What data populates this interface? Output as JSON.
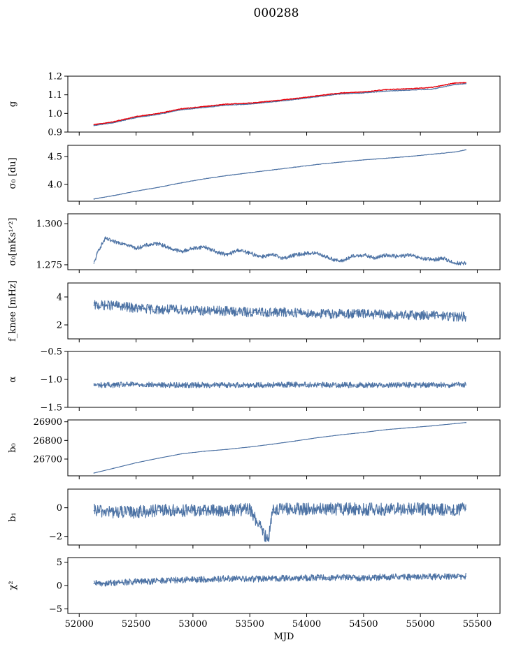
{
  "figure": {
    "title": "000288"
  },
  "colors": {
    "series": "#4c72a4",
    "highlight": "#e8000b",
    "axis": "#000000"
  },
  "chart_data": [
    {
      "id": "g",
      "type": "line",
      "ylabel": "g",
      "xlim": [
        51900,
        55700
      ],
      "ylim": [
        0.9,
        1.2
      ],
      "yticks": [
        0.9,
        1.0,
        1.1,
        1.2
      ],
      "ytick_labels": [
        "0.9",
        "1.0",
        "1.1",
        "1.2"
      ],
      "series": [
        {
          "color": "#4c72a4",
          "x": [
            52130,
            52300,
            52500,
            52700,
            52900,
            53100,
            53300,
            53500,
            53700,
            53900,
            54100,
            54300,
            54500,
            54700,
            54900,
            55100,
            55300,
            55400
          ],
          "y": [
            0.935,
            0.95,
            0.978,
            0.995,
            1.02,
            1.032,
            1.045,
            1.05,
            1.062,
            1.075,
            1.09,
            1.105,
            1.11,
            1.12,
            1.125,
            1.13,
            1.155,
            1.16
          ]
        },
        {
          "color": "#e8000b",
          "x": [
            52130,
            52300,
            52500,
            52700,
            52900,
            53100,
            53300,
            53500,
            53700,
            53900,
            54100,
            54300,
            54500,
            54700,
            54900,
            55100,
            55300,
            55400
          ],
          "y": [
            0.94,
            0.955,
            0.983,
            1.0,
            1.025,
            1.037,
            1.05,
            1.055,
            1.067,
            1.08,
            1.095,
            1.11,
            1.115,
            1.128,
            1.132,
            1.14,
            1.163,
            1.165
          ]
        }
      ]
    },
    {
      "id": "sigma0",
      "type": "line",
      "ylabel": "σ₀ [du]",
      "xlim": [
        51900,
        55700
      ],
      "ylim": [
        3.7,
        4.7
      ],
      "yticks": [
        4.0,
        4.5
      ],
      "ytick_labels": [
        "4.0",
        "4.5"
      ],
      "series": [
        {
          "color": "#4c72a4",
          "x": [
            52130,
            52300,
            52500,
            52700,
            52900,
            53100,
            53300,
            53500,
            53700,
            53900,
            54100,
            54300,
            54500,
            54700,
            54900,
            55100,
            55300,
            55400
          ],
          "y": [
            3.74,
            3.8,
            3.88,
            3.95,
            4.03,
            4.1,
            4.16,
            4.21,
            4.26,
            4.31,
            4.36,
            4.4,
            4.44,
            4.47,
            4.5,
            4.54,
            4.58,
            4.62
          ]
        }
      ]
    },
    {
      "id": "sigma0-mks",
      "type": "line",
      "ylabel": "σ₀[mKs¹ᐟ²]",
      "xlim": [
        51900,
        55700
      ],
      "ylim": [
        1.272,
        1.306
      ],
      "yticks": [
        1.275,
        1.3
      ],
      "ytick_labels": [
        "1.275",
        "1.300"
      ],
      "series": [
        {
          "color": "#4c72a4",
          "x": [
            52130,
            52170,
            52230,
            52300,
            52400,
            52500,
            52600,
            52700,
            52800,
            52900,
            53000,
            53100,
            53200,
            53300,
            53400,
            53500,
            53600,
            53700,
            53800,
            53900,
            54000,
            54100,
            54200,
            54300,
            54400,
            54500,
            54600,
            54700,
            54800,
            54900,
            55000,
            55100,
            55200,
            55300,
            55400
          ],
          "y": [
            1.276,
            1.284,
            1.291,
            1.289,
            1.288,
            1.285,
            1.287,
            1.288,
            1.285,
            1.283,
            1.285,
            1.286,
            1.283,
            1.281,
            1.284,
            1.282,
            1.28,
            1.281,
            1.279,
            1.281,
            1.282,
            1.282,
            1.279,
            1.277,
            1.28,
            1.281,
            1.279,
            1.281,
            1.28,
            1.281,
            1.279,
            1.278,
            1.279,
            1.276,
            1.276
          ]
        }
      ]
    },
    {
      "id": "fknee",
      "type": "line",
      "ylabel": "f_knee [mHz]",
      "xlim": [
        51900,
        55700
      ],
      "ylim": [
        1.0,
        5.0
      ],
      "yticks": [
        2,
        4
      ],
      "ytick_labels": [
        "2",
        "4"
      ],
      "series": [
        {
          "color": "#4c72a4",
          "x": [
            52130,
            52300,
            52500,
            52700,
            52900,
            53100,
            53300,
            53500,
            53700,
            53900,
            54100,
            54300,
            54500,
            54700,
            54900,
            55100,
            55300,
            55400
          ],
          "y": [
            3.4,
            3.4,
            3.2,
            3.1,
            3.1,
            3.0,
            3.0,
            2.9,
            2.9,
            2.9,
            2.8,
            2.8,
            2.8,
            2.7,
            2.7,
            2.7,
            2.6,
            2.6
          ]
        }
      ]
    },
    {
      "id": "alpha",
      "type": "line",
      "ylabel": "α",
      "xlim": [
        51900,
        55700
      ],
      "ylim": [
        -1.5,
        -0.5
      ],
      "yticks": [
        -1.5,
        -1.0,
        -0.5
      ],
      "ytick_labels": [
        "−1.5",
        "−1.0",
        "−0.5"
      ],
      "series": [
        {
          "color": "#4c72a4",
          "x": [
            52130,
            52300,
            52500,
            52700,
            52900,
            53100,
            53300,
            53500,
            53700,
            53900,
            54100,
            54300,
            54500,
            54700,
            54900,
            55100,
            55300,
            55400
          ],
          "y": [
            -1.1,
            -1.1,
            -1.09,
            -1.1,
            -1.1,
            -1.1,
            -1.1,
            -1.1,
            -1.1,
            -1.09,
            -1.1,
            -1.1,
            -1.1,
            -1.1,
            -1.1,
            -1.1,
            -1.1,
            -1.1
          ]
        }
      ]
    },
    {
      "id": "b0",
      "type": "line",
      "ylabel": "b₀",
      "xlim": [
        51900,
        55700
      ],
      "ylim": [
        26610,
        26910
      ],
      "yticks": [
        26700,
        26800,
        26900
      ],
      "ytick_labels": [
        "26700",
        "26800",
        "26900"
      ],
      "series": [
        {
          "color": "#4c72a4",
          "x": [
            52130,
            52300,
            52500,
            52700,
            52900,
            53100,
            53300,
            53500,
            53700,
            53900,
            54100,
            54300,
            54500,
            54700,
            54900,
            55100,
            55300,
            55400
          ],
          "y": [
            26625,
            26650,
            26680,
            26705,
            26728,
            26742,
            26752,
            26765,
            26780,
            26797,
            26815,
            26830,
            26843,
            26858,
            26868,
            26878,
            26890,
            26896
          ]
        }
      ]
    },
    {
      "id": "b1",
      "type": "line",
      "ylabel": "b₁",
      "xlim": [
        51900,
        55700
      ],
      "ylim": [
        -2.6,
        1.3
      ],
      "yticks": [
        -2,
        0
      ],
      "ytick_labels": [
        "−2",
        "0"
      ],
      "series": [
        {
          "color": "#4c72a4",
          "x": [
            52130,
            52300,
            52500,
            52700,
            52900,
            53100,
            53300,
            53500,
            53660,
            53700,
            53900,
            54100,
            54300,
            54500,
            54700,
            54900,
            55100,
            55300,
            55400
          ],
          "y": [
            -0.2,
            -0.3,
            -0.3,
            -0.2,
            -0.2,
            -0.2,
            -0.2,
            -0.1,
            -2.3,
            -0.1,
            -0.1,
            -0.1,
            -0.1,
            -0.1,
            -0.1,
            -0.1,
            -0.1,
            -0.1,
            -0.1
          ]
        }
      ]
    },
    {
      "id": "chi2",
      "type": "line",
      "ylabel": "χ²",
      "xlabel": "MJD",
      "xlim": [
        51900,
        55700
      ],
      "ylim": [
        -6,
        6
      ],
      "yticks": [
        -5,
        0,
        5
      ],
      "ytick_labels": [
        "−5",
        "0",
        "5"
      ],
      "xticks": [
        52000,
        52500,
        53000,
        53500,
        54000,
        54500,
        55000,
        55500
      ],
      "xtick_labels": [
        "52000",
        "52500",
        "53000",
        "53500",
        "54000",
        "54500",
        "55000",
        "55500"
      ],
      "series": [
        {
          "color": "#4c72a4",
          "x": [
            52130,
            52300,
            52500,
            52700,
            52900,
            53100,
            53300,
            53500,
            53700,
            53900,
            54100,
            54300,
            54500,
            54700,
            54900,
            55100,
            55300,
            55400
          ],
          "y": [
            0.4,
            0.6,
            0.8,
            1.0,
            1.2,
            1.3,
            1.5,
            1.4,
            1.5,
            1.6,
            1.7,
            1.8,
            1.6,
            1.9,
            1.8,
            1.9,
            1.9,
            2.0
          ]
        }
      ]
    }
  ]
}
